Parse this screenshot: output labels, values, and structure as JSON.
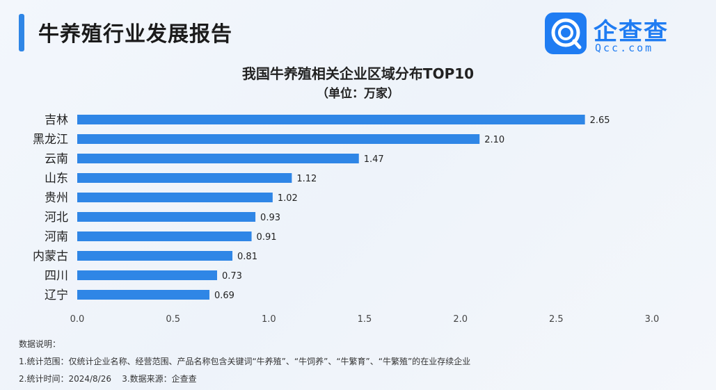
{
  "header": {
    "title": "牛养殖行业发展报告"
  },
  "logo": {
    "name": "企查查",
    "sub": "Qcc.com"
  },
  "chart_data": {
    "type": "bar",
    "orientation": "horizontal",
    "title": "我国牛养殖相关企业区域分布TOP10",
    "subtitle": "（单位：万家）",
    "categories": [
      "吉林",
      "黑龙江",
      "云南",
      "山东",
      "贵州",
      "河北",
      "河南",
      "内蒙古",
      "四川",
      "辽宁"
    ],
    "values": [
      2.65,
      2.1,
      1.47,
      1.12,
      1.02,
      0.93,
      0.91,
      0.81,
      0.73,
      0.69
    ],
    "value_labels": [
      "2.65",
      "2.10",
      "1.47",
      "1.12",
      "1.02",
      "0.93",
      "0.91",
      "0.81",
      "0.73",
      "0.69"
    ],
    "xlim": [
      0,
      3.0
    ],
    "xticks": [
      "0.0",
      "0.5",
      "1.0",
      "1.5",
      "2.0",
      "2.5",
      "3.0"
    ],
    "bar_color": "#2f86e6",
    "grid": false
  },
  "notes": {
    "heading": "数据说明：",
    "line1": "1.统计范围：仅统计企业名称、经营范围、产品名称包含关键词“牛养殖”、“牛饲养”、“牛繁育”、“牛繁殖”的在业存续企业",
    "line2": "2.统计时间：2024/8/26    3.数据来源：企查查"
  }
}
